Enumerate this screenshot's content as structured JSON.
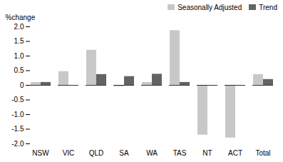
{
  "chart_data": {
    "type": "bar",
    "categories": [
      "NSW",
      "VIC",
      "QLD",
      "SA",
      "WA",
      "TAS",
      "NT",
      "ACT",
      "Total"
    ],
    "series": [
      {
        "name": "Seasonally Adjusted",
        "color": "#c8c8c8",
        "values": [
          0.1,
          0.47,
          1.2,
          -0.05,
          0.1,
          1.87,
          -1.7,
          -1.8,
          0.37
        ]
      },
      {
        "name": "Trend",
        "color": "#636363",
        "values": [
          0.1,
          0.0,
          0.37,
          0.3,
          0.38,
          0.1,
          0.0,
          0.0,
          0.2
        ]
      }
    ],
    "ylabel": "%change",
    "ylim": [
      -2.0,
      2.0
    ],
    "yticks": [
      {
        "value": -2.0,
        "label": "-2.0"
      },
      -1.5,
      {
        "value": -1.0,
        "label": "-1.0"
      },
      -0.5,
      0,
      0.5,
      {
        "value": 1.0,
        "label": "1.0"
      },
      1.5,
      {
        "value": 2.0,
        "label": "2.0"
      }
    ],
    "grid": false,
    "legend": "upper right"
  }
}
